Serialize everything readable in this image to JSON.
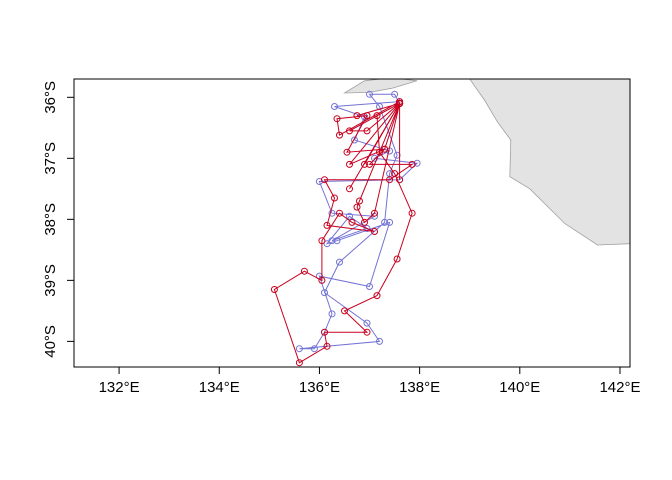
{
  "chart_data": {
    "type": "map",
    "title": "",
    "xlabel": "",
    "ylabel": "",
    "xlim": [
      131.1,
      142.2
    ],
    "ylim": [
      -40.42,
      -35.7
    ],
    "x_ticks": [
      {
        "value": 132,
        "label": "132°E"
      },
      {
        "value": 134,
        "label": "134°E"
      },
      {
        "value": 136,
        "label": "136°E"
      },
      {
        "value": 138,
        "label": "138°E"
      },
      {
        "value": 140,
        "label": "140°E"
      },
      {
        "value": 142,
        "label": "142°E"
      }
    ],
    "y_ticks": [
      {
        "value": -36,
        "label": "36°S"
      },
      {
        "value": -37,
        "label": "37°S"
      },
      {
        "value": -38,
        "label": "38°S"
      },
      {
        "value": -39,
        "label": "39°S"
      },
      {
        "value": -40,
        "label": "40°S"
      }
    ],
    "land_color": "#e3e3e3",
    "land_border_color": "#a0a0a0",
    "land": [
      {
        "name": "south-australia-mainland",
        "coords": [
          [
            140.0,
            -35.7
          ],
          [
            142.2,
            -35.7
          ],
          [
            142.2,
            -38.4
          ],
          [
            141.55,
            -38.42
          ],
          [
            140.9,
            -38.07
          ],
          [
            140.2,
            -37.5
          ],
          [
            139.8,
            -37.3
          ],
          [
            139.82,
            -36.7
          ],
          [
            139.55,
            -36.4
          ],
          [
            139.3,
            -36.05
          ],
          [
            139.0,
            -35.7
          ]
        ]
      },
      {
        "name": "kangaroo-island",
        "coords": [
          [
            136.5,
            -35.93
          ],
          [
            136.9,
            -35.73
          ],
          [
            137.45,
            -35.68
          ],
          [
            137.95,
            -35.73
          ],
          [
            137.45,
            -35.85
          ],
          [
            137.0,
            -35.92
          ]
        ]
      }
    ],
    "series": [
      {
        "color": "#7373d6",
        "points": [
          [
            137.6,
            -36.07
          ],
          [
            136.3,
            -36.15
          ],
          [
            136.9,
            -36.32
          ],
          [
            136.7,
            -36.7
          ],
          [
            137.4,
            -36.88
          ],
          [
            137.1,
            -37.0
          ],
          [
            137.95,
            -37.08
          ],
          [
            137.6,
            -37.35
          ],
          [
            136.0,
            -37.38
          ],
          [
            136.25,
            -37.9
          ],
          [
            137.1,
            -37.95
          ],
          [
            136.25,
            -38.35
          ],
          [
            136.95,
            -38.15
          ],
          [
            136.6,
            -37.95
          ],
          [
            136.15,
            -38.4
          ],
          [
            136.35,
            -38.35
          ],
          [
            137.4,
            -38.05
          ],
          [
            137.0,
            -39.1
          ],
          [
            136.0,
            -38.93
          ],
          [
            136.25,
            -39.55
          ],
          [
            136.1,
            -39.85
          ],
          [
            135.9,
            -40.12
          ],
          [
            135.6,
            -40.12
          ],
          [
            137.2,
            -40.0
          ],
          [
            136.95,
            -39.7
          ],
          [
            136.1,
            -39.2
          ],
          [
            136.4,
            -38.7
          ],
          [
            137.3,
            -38.05
          ],
          [
            137.4,
            -37.25
          ],
          [
            137.55,
            -36.95
          ],
          [
            137.2,
            -36.15
          ],
          [
            137.0,
            -35.95
          ],
          [
            137.5,
            -35.95
          ],
          [
            137.6,
            -36.1
          ]
        ]
      },
      {
        "color": "#c8001e",
        "points": [
          [
            137.6,
            -36.07
          ],
          [
            136.4,
            -36.62
          ],
          [
            136.35,
            -36.35
          ],
          [
            136.95,
            -36.3
          ],
          [
            136.55,
            -36.9
          ],
          [
            137.3,
            -36.85
          ],
          [
            137.0,
            -37.1
          ],
          [
            137.85,
            -37.1
          ],
          [
            137.4,
            -37.35
          ],
          [
            136.1,
            -37.35
          ],
          [
            136.3,
            -37.65
          ],
          [
            136.15,
            -38.1
          ],
          [
            137.1,
            -38.2
          ],
          [
            136.65,
            -38.05
          ],
          [
            136.4,
            -37.9
          ],
          [
            136.05,
            -38.35
          ],
          [
            136.05,
            -39.0
          ],
          [
            135.7,
            -38.85
          ],
          [
            135.1,
            -39.15
          ],
          [
            135.6,
            -40.35
          ],
          [
            136.15,
            -40.08
          ],
          [
            136.1,
            -39.85
          ],
          [
            136.95,
            -39.85
          ],
          [
            136.5,
            -39.5
          ],
          [
            137.15,
            -39.25
          ],
          [
            137.55,
            -38.65
          ],
          [
            137.85,
            -37.9
          ],
          [
            137.5,
            -37.25
          ],
          [
            137.2,
            -36.9
          ],
          [
            137.15,
            -36.3
          ],
          [
            137.6,
            -36.1
          ],
          [
            136.6,
            -36.55
          ],
          [
            136.95,
            -36.55
          ],
          [
            137.6,
            -36.1
          ],
          [
            136.6,
            -37.1
          ],
          [
            137.3,
            -36.85
          ],
          [
            137.6,
            -36.1
          ],
          [
            136.9,
            -37.1
          ],
          [
            137.6,
            -36.1
          ],
          [
            137.6,
            -37.35
          ],
          [
            137.6,
            -36.1
          ],
          [
            136.75,
            -36.3
          ],
          [
            137.6,
            -36.1
          ],
          [
            136.6,
            -37.5
          ],
          [
            137.6,
            -36.1
          ],
          [
            136.8,
            -37.7
          ],
          [
            137.6,
            -36.1
          ],
          [
            136.75,
            -37.8
          ],
          [
            136.9,
            -38.05
          ],
          [
            137.1,
            -37.9
          ],
          [
            137.6,
            -36.1
          ]
        ]
      }
    ]
  }
}
